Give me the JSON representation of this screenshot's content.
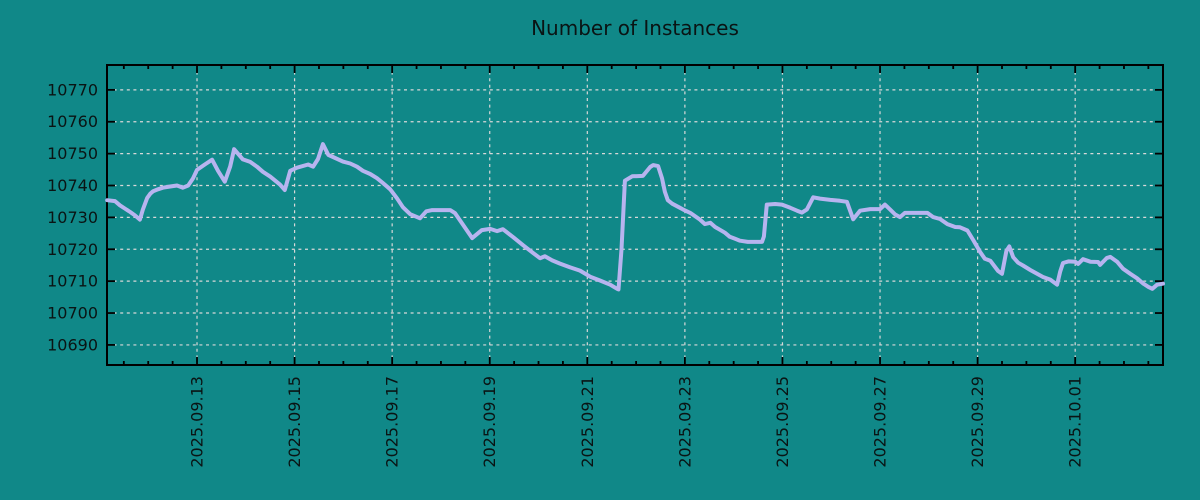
{
  "title": "Number of Instances",
  "colors": {
    "background": "#108888",
    "line": "#b7b4ef",
    "grid": "#d8d8d8",
    "axis": "#000000",
    "text": "#0a1414"
  },
  "chart_data": {
    "type": "line",
    "title": "Number of Instances",
    "xlabel": "",
    "ylabel": "",
    "grid": true,
    "legend": "none",
    "y_ticks": [
      10690,
      10700,
      10710,
      10720,
      10730,
      10740,
      10750,
      10760,
      10770
    ],
    "ylim": [
      10683.7,
      10777.8
    ],
    "x_ticks": [
      {
        "day": 2,
        "label": "2025.09.13"
      },
      {
        "day": 4,
        "label": "2025.09.15"
      },
      {
        "day": 6,
        "label": "2025.09.17"
      },
      {
        "day": 8,
        "label": "2025.09.19"
      },
      {
        "day": 10,
        "label": "2025.09.21"
      },
      {
        "day": 12,
        "label": "2025.09.23"
      },
      {
        "day": 14,
        "label": "2025.09.25"
      },
      {
        "day": 16,
        "label": "2025.09.27"
      },
      {
        "day": 18,
        "label": "2025.09.29"
      },
      {
        "day": 20,
        "label": "2025.10.01"
      }
    ],
    "xlim_days": [
      0.155,
      21.8
    ],
    "minor_x_tick_interval_days": 0.5,
    "series": [
      {
        "name": "instances",
        "points": [
          [
            0.16,
            10735.4
          ],
          [
            0.32,
            10735.1
          ],
          [
            0.42,
            10733.8
          ],
          [
            0.52,
            10732.8
          ],
          [
            0.63,
            10731.7
          ],
          [
            0.73,
            10730.6
          ],
          [
            0.83,
            10729.3
          ],
          [
            0.89,
            10732.5
          ],
          [
            0.98,
            10736.1
          ],
          [
            1.04,
            10737.4
          ],
          [
            1.1,
            10738.2
          ],
          [
            1.2,
            10738.8
          ],
          [
            1.3,
            10739.3
          ],
          [
            1.45,
            10739.7
          ],
          [
            1.59,
            10740.0
          ],
          [
            1.71,
            10739.3
          ],
          [
            1.82,
            10740.0
          ],
          [
            1.92,
            10742.3
          ],
          [
            2.0,
            10744.9
          ],
          [
            2.16,
            10746.6
          ],
          [
            2.31,
            10748.1
          ],
          [
            2.43,
            10744.6
          ],
          [
            2.57,
            10741.2
          ],
          [
            2.68,
            10746.0
          ],
          [
            2.76,
            10751.4
          ],
          [
            2.94,
            10748.2
          ],
          [
            3.09,
            10747.4
          ],
          [
            3.23,
            10745.9
          ],
          [
            3.35,
            10744.3
          ],
          [
            3.5,
            10742.8
          ],
          [
            3.7,
            10740.3
          ],
          [
            3.8,
            10738.6
          ],
          [
            3.91,
            10744.6
          ],
          [
            4.05,
            10745.6
          ],
          [
            4.28,
            10746.6
          ],
          [
            4.38,
            10745.9
          ],
          [
            4.48,
            10748.3
          ],
          [
            4.58,
            10753.0
          ],
          [
            4.69,
            10749.6
          ],
          [
            4.81,
            10748.8
          ],
          [
            4.99,
            10747.5
          ],
          [
            5.14,
            10746.9
          ],
          [
            5.28,
            10745.9
          ],
          [
            5.4,
            10744.6
          ],
          [
            5.55,
            10743.6
          ],
          [
            5.69,
            10742.3
          ],
          [
            5.81,
            10740.8
          ],
          [
            5.96,
            10738.8
          ],
          [
            6.1,
            10736.0
          ],
          [
            6.22,
            10733.2
          ],
          [
            6.37,
            10731.0
          ],
          [
            6.57,
            10729.7
          ],
          [
            6.7,
            10731.9
          ],
          [
            6.82,
            10732.3
          ],
          [
            7.19,
            10732.3
          ],
          [
            7.29,
            10731.3
          ],
          [
            7.43,
            10728.2
          ],
          [
            7.64,
            10723.5
          ],
          [
            7.84,
            10726.0
          ],
          [
            8.01,
            10726.4
          ],
          [
            8.15,
            10725.7
          ],
          [
            8.27,
            10726.3
          ],
          [
            8.48,
            10723.8
          ],
          [
            8.68,
            10721.3
          ],
          [
            8.89,
            10718.8
          ],
          [
            9.03,
            10717.2
          ],
          [
            9.13,
            10717.8
          ],
          [
            9.28,
            10716.5
          ],
          [
            9.44,
            10715.5
          ],
          [
            9.65,
            10714.3
          ],
          [
            9.85,
            10713.3
          ],
          [
            10.06,
            10711.4
          ],
          [
            10.26,
            10710.2
          ],
          [
            10.47,
            10708.9
          ],
          [
            10.61,
            10707.6
          ],
          [
            10.64,
            10707.4
          ],
          [
            10.7,
            10720.0
          ],
          [
            10.77,
            10741.5
          ],
          [
            10.92,
            10742.9
          ],
          [
            11.14,
            10743.0
          ],
          [
            11.29,
            10745.8
          ],
          [
            11.35,
            10746.4
          ],
          [
            11.45,
            10746.1
          ],
          [
            11.53,
            10742.3
          ],
          [
            11.59,
            10738.0
          ],
          [
            11.65,
            10735.4
          ],
          [
            11.74,
            10734.3
          ],
          [
            11.9,
            10733.0
          ],
          [
            11.96,
            10732.5
          ],
          [
            12.11,
            10731.4
          ],
          [
            12.31,
            10729.3
          ],
          [
            12.41,
            10727.9
          ],
          [
            12.52,
            10728.3
          ],
          [
            12.62,
            10727.0
          ],
          [
            12.72,
            10726.1
          ],
          [
            12.82,
            10725.2
          ],
          [
            12.92,
            10723.9
          ],
          [
            13.03,
            10723.3
          ],
          [
            13.13,
            10722.7
          ],
          [
            13.29,
            10722.3
          ],
          [
            13.58,
            10722.3
          ],
          [
            13.62,
            10724.0
          ],
          [
            13.68,
            10734.0
          ],
          [
            13.85,
            10734.2
          ],
          [
            13.99,
            10734.0
          ],
          [
            14.16,
            10733.0
          ],
          [
            14.3,
            10732.1
          ],
          [
            14.4,
            10731.5
          ],
          [
            14.5,
            10732.5
          ],
          [
            14.63,
            10736.3
          ],
          [
            14.77,
            10735.9
          ],
          [
            14.98,
            10735.5
          ],
          [
            15.18,
            10735.2
          ],
          [
            15.32,
            10734.9
          ],
          [
            15.45,
            10729.4
          ],
          [
            15.59,
            10732.1
          ],
          [
            15.8,
            10732.6
          ],
          [
            16.0,
            10732.6
          ],
          [
            16.1,
            10734.0
          ],
          [
            16.21,
            10732.4
          ],
          [
            16.31,
            10730.9
          ],
          [
            16.41,
            10730.1
          ],
          [
            16.51,
            10731.4
          ],
          [
            16.72,
            10731.4
          ],
          [
            16.97,
            10731.4
          ],
          [
            17.09,
            10730.1
          ],
          [
            17.23,
            10729.5
          ],
          [
            17.38,
            10727.9
          ],
          [
            17.54,
            10727.0
          ],
          [
            17.64,
            10726.9
          ],
          [
            17.79,
            10725.9
          ],
          [
            17.91,
            10722.9
          ],
          [
            18.05,
            10719.2
          ],
          [
            18.15,
            10717.0
          ],
          [
            18.26,
            10716.4
          ],
          [
            18.42,
            10713.2
          ],
          [
            18.5,
            10712.3
          ],
          [
            18.59,
            10719.5
          ],
          [
            18.65,
            10720.9
          ],
          [
            18.73,
            10717.5
          ],
          [
            18.83,
            10715.8
          ],
          [
            18.93,
            10714.9
          ],
          [
            19.08,
            10713.5
          ],
          [
            19.22,
            10712.3
          ],
          [
            19.34,
            10711.3
          ],
          [
            19.49,
            10710.5
          ],
          [
            19.63,
            10708.9
          ],
          [
            19.69,
            10712.9
          ],
          [
            19.75,
            10715.7
          ],
          [
            19.86,
            10716.2
          ],
          [
            20.0,
            10716.1
          ],
          [
            20.06,
            10715.4
          ],
          [
            20.16,
            10716.9
          ],
          [
            20.31,
            10716.1
          ],
          [
            20.47,
            10716.0
          ],
          [
            20.51,
            10715.1
          ],
          [
            20.65,
            10717.3
          ],
          [
            20.72,
            10717.6
          ],
          [
            20.86,
            10716.1
          ],
          [
            20.98,
            10713.9
          ],
          [
            21.13,
            10712.3
          ],
          [
            21.27,
            10710.9
          ],
          [
            21.39,
            10709.3
          ],
          [
            21.5,
            10708.2
          ],
          [
            21.58,
            10707.6
          ],
          [
            21.68,
            10708.9
          ],
          [
            21.8,
            10709.2
          ]
        ]
      }
    ]
  }
}
